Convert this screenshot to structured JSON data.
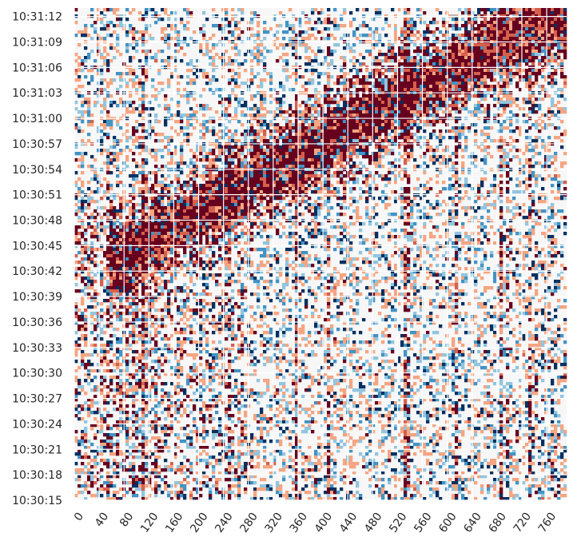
{
  "chart_data": {
    "type": "heatmap",
    "title": "",
    "xlabel": "",
    "ylabel": "",
    "x_ticks": [
      "0",
      "40",
      "80",
      "120",
      "160",
      "200",
      "240",
      "280",
      "320",
      "360",
      "400",
      "440",
      "480",
      "520",
      "560",
      "600",
      "640",
      "680",
      "720",
      "760"
    ],
    "x_tick_step": 40,
    "x_range": [
      0,
      792
    ],
    "y_ticks": [
      "10:31:12",
      "10:31:09",
      "10:31:06",
      "10:31:03",
      "10:31:00",
      "10:30:57",
      "10:30:54",
      "10:30:51",
      "10:30:48",
      "10:30:45",
      "10:30:42",
      "10:30:39",
      "10:30:36",
      "10:30:33",
      "10:30:30",
      "10:30:27",
      "10:30:24",
      "10:30:21",
      "10:30:18",
      "10:30:15"
    ],
    "y_range": [
      "10:30:15",
      "10:31:13"
    ],
    "y_order": "time increasing upward",
    "colormap": "diverging red-blue",
    "colors": {
      "positive_strong": "#67001f",
      "positive_mid": "#d6604d",
      "positive_light": "#f4a582",
      "neutral": "#f7f7f7",
      "negative_light": "#92c5de",
      "negative_mid": "#4393c3",
      "negative_strong": "#053061",
      "grid": "#ffffff"
    },
    "grid": true,
    "colorbar": false,
    "pattern": "noisy correlation-like matrix with a dense dark-red diagonal band running from about x=80 at 10:30:42 to x=720 at 10:31:12"
  }
}
